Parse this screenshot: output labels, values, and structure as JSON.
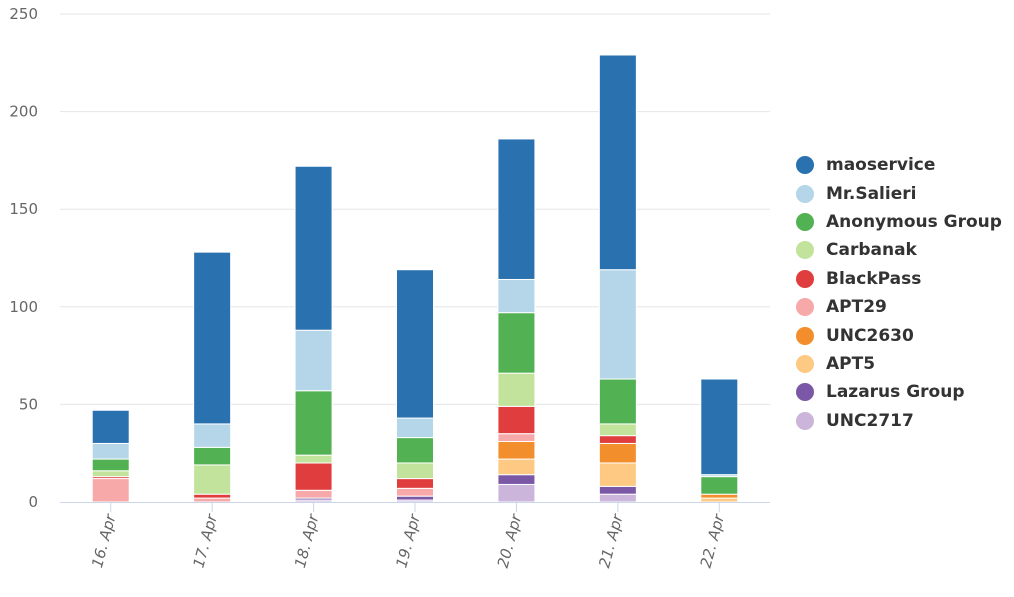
{
  "chart_data": {
    "type": "bar",
    "stacked": true,
    "title": "",
    "xlabel": "",
    "ylabel": "",
    "categories": [
      "16. Apr",
      "17. Apr",
      "18. Apr",
      "19. Apr",
      "20. Apr",
      "21. Apr",
      "22. Apr"
    ],
    "ylim": [
      0,
      250
    ],
    "yticks": [
      0,
      50,
      100,
      150,
      200,
      250
    ],
    "grid": true,
    "legend_position": "right",
    "series": [
      {
        "name": "UNC2717",
        "color": "#cbb5db",
        "values": [
          0,
          0,
          1,
          1,
          9,
          4,
          0
        ]
      },
      {
        "name": "Lazarus Group",
        "color": "#7a58a6",
        "values": [
          0,
          0,
          1,
          2,
          5,
          4,
          0
        ]
      },
      {
        "name": "APT5",
        "color": "#fdc983",
        "values": [
          0,
          0,
          0,
          0,
          8,
          12,
          2
        ]
      },
      {
        "name": "UNC2630",
        "color": "#f28e2b",
        "values": [
          0,
          0,
          0,
          0,
          9,
          10,
          2
        ]
      },
      {
        "name": "APT29",
        "color": "#f7a8a8",
        "values": [
          12,
          2,
          4,
          4,
          4,
          0,
          0
        ]
      },
      {
        "name": "BlackPass",
        "color": "#e03e3e",
        "values": [
          1,
          2,
          14,
          5,
          14,
          4,
          0
        ]
      },
      {
        "name": "Carbanak",
        "color": "#c2e39c",
        "values": [
          3,
          15,
          4,
          8,
          17,
          6,
          0
        ]
      },
      {
        "name": "Anonymous Group",
        "color": "#52b152",
        "values": [
          6,
          9,
          33,
          13,
          31,
          23,
          9
        ]
      },
      {
        "name": "Mr.Salieri",
        "color": "#b4d6e8",
        "values": [
          8,
          12,
          31,
          10,
          17,
          56,
          1
        ]
      },
      {
        "name": "maoservice",
        "color": "#2a71b0",
        "values": [
          17,
          88,
          84,
          76,
          72,
          110,
          49
        ]
      }
    ]
  },
  "legend": {
    "items": [
      {
        "label": "maoservice",
        "color": "#2a71b0"
      },
      {
        "label": "Mr.Salieri",
        "color": "#b4d6e8"
      },
      {
        "label": "Anonymous Group",
        "color": "#52b152"
      },
      {
        "label": "Carbanak",
        "color": "#c2e39c"
      },
      {
        "label": "BlackPass",
        "color": "#e03e3e"
      },
      {
        "label": "APT29",
        "color": "#f7a8a8"
      },
      {
        "label": "UNC2630",
        "color": "#f28e2b"
      },
      {
        "label": "APT5",
        "color": "#fdc983"
      },
      {
        "label": "Lazarus Group",
        "color": "#7a58a6"
      },
      {
        "label": "UNC2717",
        "color": "#cbb5db"
      }
    ]
  }
}
